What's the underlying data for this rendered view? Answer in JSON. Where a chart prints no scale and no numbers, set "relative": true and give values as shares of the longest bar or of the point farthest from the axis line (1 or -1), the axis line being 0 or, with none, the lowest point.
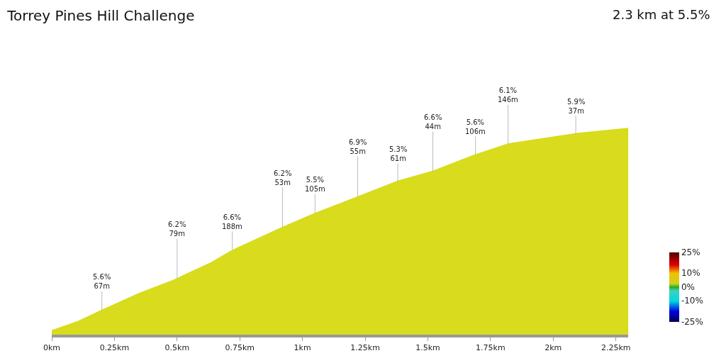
{
  "chart_data": {
    "type": "area",
    "title": "Torrey Pines Hill Challenge",
    "subtitle": "2.3 km at 5.5%",
    "relative": true,
    "x": [
      0,
      0.105,
      0.202,
      0.35,
      0.486,
      0.635,
      0.72,
      0.92,
      1.05,
      1.22,
      1.38,
      1.52,
      1.68,
      1.82,
      1.925,
      2.1,
      2.3
    ],
    "series": [
      {
        "color": "#d8dc1c",
        "values": [
          0.02,
          0.064,
          0.12,
          0.2,
          0.264,
          0.348,
          0.408,
          0.52,
          0.588,
          0.668,
          0.744,
          0.792,
          0.868,
          0.924,
          0.944,
          0.976,
          1.0
        ]
      }
    ],
    "xlim": [
      0,
      2.3
    ],
    "xticks": [
      {
        "value": 0,
        "label": "0km"
      },
      {
        "value": 0.25,
        "label": "0.25km"
      },
      {
        "value": 0.5,
        "label": "0.5km"
      },
      {
        "value": 0.75,
        "label": "0.75km"
      },
      {
        "value": 1,
        "label": "1km"
      },
      {
        "value": 1.25,
        "label": "1.25km"
      },
      {
        "value": 1.5,
        "label": "1.5km"
      },
      {
        "value": 1.75,
        "label": "1.75km"
      },
      {
        "value": 2,
        "label": "2km"
      },
      {
        "value": 2.25,
        "label": "2.25km"
      }
    ],
    "annotations": [
      {
        "text": "5.6%\n67m",
        "x": 0.2,
        "y": 0.12
      },
      {
        "text": "6.2%\n79m",
        "x": 0.5,
        "y": 0.27
      },
      {
        "text": "6.6%\n188m",
        "x": 0.72,
        "y": 0.41
      },
      {
        "text": "6.2%\n53m",
        "x": 0.92,
        "y": 0.52
      },
      {
        "text": "5.5%\n105m",
        "x": 1.05,
        "y": 0.59
      },
      {
        "text": "6.9%\n55m",
        "x": 1.22,
        "y": 0.67
      },
      {
        "text": "5.3%\n61m",
        "x": 1.38,
        "y": 0.74
      },
      {
        "text": "6.6%\n44m",
        "x": 1.52,
        "y": 0.79
      },
      {
        "text": "5.6%\n106m",
        "x": 1.69,
        "y": 0.87
      },
      {
        "text": "6.1%\n146m",
        "x": 1.82,
        "y": 0.92
      },
      {
        "text": "5.9%\n37m",
        "x": 2.09,
        "y": 0.97
      }
    ],
    "clim": [
      -25,
      25
    ],
    "cticks": [
      {
        "value": 25,
        "label": "25%"
      },
      {
        "value": 10,
        "label": "10%"
      },
      {
        "value": 0,
        "label": "0%"
      },
      {
        "value": -10,
        "label": "-10%"
      },
      {
        "value": -25,
        "label": "-25%"
      }
    ]
  }
}
